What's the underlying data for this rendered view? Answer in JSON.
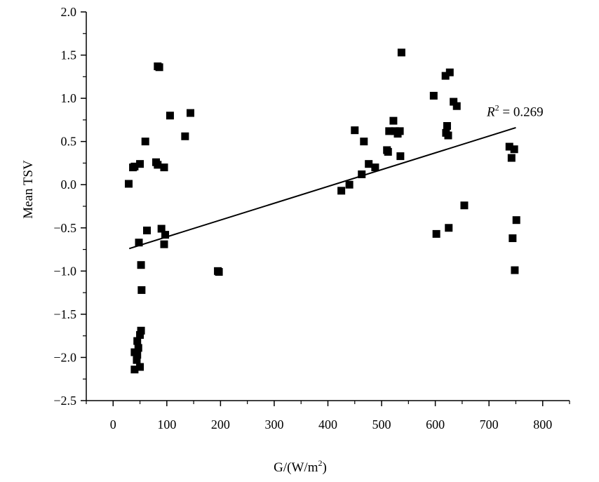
{
  "chart_data": {
    "type": "scatter",
    "xlabel": "G/(W/m",
    "xlabel_sup": "2",
    "xlabel_close": ")",
    "ylabel": "Mean TSV",
    "xlim": [
      -50,
      850
    ],
    "ylim": [
      -2.5,
      2.0
    ],
    "x_ticks": [
      0,
      100,
      200,
      300,
      400,
      500,
      600,
      700,
      800
    ],
    "y_ticks": [
      -2.5,
      -2.0,
      -1.5,
      -1.0,
      -0.5,
      0.0,
      0.5,
      1.0,
      1.5,
      2.0
    ],
    "x_tick_labels": [
      "0",
      "100",
      "200",
      "300",
      "400",
      "500",
      "600",
      "700",
      "800"
    ],
    "y_tick_labels": [
      "−2.5",
      "−2.0",
      "−1.5",
      "−1.0",
      "−0.5",
      "0.0",
      "0.5",
      "1.0",
      "1.5",
      "2.0"
    ],
    "grid": false,
    "points": [
      {
        "x": 29,
        "y": 0.01
      },
      {
        "x": 37,
        "y": 0.2
      },
      {
        "x": 40,
        "y": 0.21
      },
      {
        "x": 50,
        "y": 0.24
      },
      {
        "x": 60,
        "y": 0.5
      },
      {
        "x": 83,
        "y": 1.37
      },
      {
        "x": 86,
        "y": 1.36
      },
      {
        "x": 80,
        "y": 0.26
      },
      {
        "x": 83,
        "y": 0.23
      },
      {
        "x": 95,
        "y": 0.2
      },
      {
        "x": 106,
        "y": 0.8
      },
      {
        "x": 134,
        "y": 0.56
      },
      {
        "x": 144,
        "y": 0.83
      },
      {
        "x": 63,
        "y": -0.53
      },
      {
        "x": 90,
        "y": -0.51
      },
      {
        "x": 97,
        "y": -0.58
      },
      {
        "x": 95,
        "y": -0.69
      },
      {
        "x": 48,
        "y": -0.67
      },
      {
        "x": 52,
        "y": -0.93
      },
      {
        "x": 53,
        "y": -1.22
      },
      {
        "x": 52,
        "y": -1.69
      },
      {
        "x": 50,
        "y": -1.74
      },
      {
        "x": 45,
        "y": -1.81
      },
      {
        "x": 47,
        "y": -1.89
      },
      {
        "x": 40,
        "y": -1.94
      },
      {
        "x": 45,
        "y": -1.97
      },
      {
        "x": 44,
        "y": -2.03
      },
      {
        "x": 50,
        "y": -2.11
      },
      {
        "x": 40,
        "y": -2.14
      },
      {
        "x": 195,
        "y": -1.0
      },
      {
        "x": 197,
        "y": -1.01
      },
      {
        "x": 425,
        "y": -0.07
      },
      {
        "x": 440,
        "y": 0.0
      },
      {
        "x": 450,
        "y": 0.63
      },
      {
        "x": 463,
        "y": 0.12
      },
      {
        "x": 467,
        "y": 0.5
      },
      {
        "x": 476,
        "y": 0.24
      },
      {
        "x": 488,
        "y": 0.2
      },
      {
        "x": 510,
        "y": 0.4
      },
      {
        "x": 512,
        "y": 0.38
      },
      {
        "x": 514,
        "y": 0.62
      },
      {
        "x": 522,
        "y": 0.74
      },
      {
        "x": 525,
        "y": 0.62
      },
      {
        "x": 530,
        "y": 0.59
      },
      {
        "x": 534,
        "y": 0.62
      },
      {
        "x": 535,
        "y": 0.33
      },
      {
        "x": 537,
        "y": 1.53
      },
      {
        "x": 597,
        "y": 1.03
      },
      {
        "x": 602,
        "y": -0.57
      },
      {
        "x": 619,
        "y": 1.26
      },
      {
        "x": 620,
        "y": 0.6
      },
      {
        "x": 622,
        "y": 0.68
      },
      {
        "x": 624,
        "y": 0.57
      },
      {
        "x": 625,
        "y": -0.5
      },
      {
        "x": 627,
        "y": 1.3
      },
      {
        "x": 634,
        "y": 0.96
      },
      {
        "x": 640,
        "y": 0.91
      },
      {
        "x": 654,
        "y": -0.24
      },
      {
        "x": 738,
        "y": 0.44
      },
      {
        "x": 742,
        "y": 0.31
      },
      {
        "x": 744,
        "y": -0.62
      },
      {
        "x": 747,
        "y": 0.41
      },
      {
        "x": 748,
        "y": -0.99
      },
      {
        "x": 751,
        "y": -0.41
      }
    ],
    "fit_line": {
      "x1": 30,
      "y1": -0.74,
      "x2": 750,
      "y2": 0.66
    },
    "annotation": {
      "r_label": "R",
      "r_sup": "2",
      "equals_text": " = 0.269",
      "anchor_x": 722,
      "anchor_y": 0.85
    }
  }
}
